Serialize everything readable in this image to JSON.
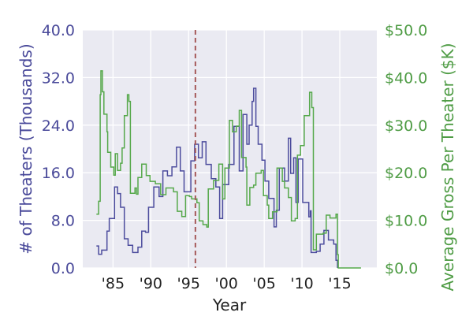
{
  "chart_data": {
    "type": "line",
    "title": "",
    "xlabel": "Year",
    "ylabel": "# of Theaters (Thousands)",
    "y2label": "Average Gross Per Theater ($K)",
    "xlim": [
      1981,
      2019.9
    ],
    "ylim": [
      0,
      40
    ],
    "y2lim": [
      0,
      50
    ],
    "grid": true,
    "x_ticks": [
      1985,
      1990,
      1995,
      2000,
      2005,
      2010,
      2015
    ],
    "x_tick_labels": [
      "'85",
      "'90",
      "'95",
      "'00",
      "'05",
      "'10",
      "'15"
    ],
    "y_ticks": [
      0,
      8,
      16,
      24,
      32,
      40
    ],
    "y_tick_labels": [
      "0.0",
      "8.0",
      "16.0",
      "24.0",
      "32.0",
      "40.0"
    ],
    "y2_ticks": [
      0,
      10,
      20,
      30,
      40,
      50
    ],
    "y2_tick_labels": [
      "$0.0",
      "$10.0",
      "$20.0",
      "$30.0",
      "$40.0",
      "$50.0"
    ],
    "vline": {
      "x": 1995.9,
      "style": "dashed",
      "color": "#a65a5a"
    },
    "series": [
      {
        "name": "Theaters (Thousands)",
        "axis": "left",
        "color": "#4c4c9d",
        "x": [
          1982.8,
          1983.1,
          1983.5,
          1984.2,
          1984.5,
          1985.2,
          1985.6,
          1986.0,
          1986.5,
          1987.0,
          1987.6,
          1988.3,
          1988.8,
          1989.3,
          1989.7,
          1990.4,
          1991.1,
          1991.6,
          1992.2,
          1992.8,
          1993.4,
          1993.9,
          1994.4,
          1995.3,
          1995.8,
          1996.3,
          1996.8,
          1997.3,
          1998.0,
          1998.6,
          1999.1,
          1999.5,
          2000.3,
          2001.0,
          2001.7,
          2002.2,
          2002.7,
          2003.0,
          2003.4,
          2003.6,
          2003.9,
          2004.2,
          2004.7,
          2005.1,
          2005.6,
          2006.3,
          2006.6,
          2007.0,
          2007.7,
          2008.2,
          2008.5,
          2008.9,
          2009.2,
          2009.5,
          2010.1,
          2010.9,
          2011.1,
          2011.2,
          2011.9,
          2012.4,
          2012.9,
          2013.5,
          2014.2,
          2014.5,
          2014.7
        ],
        "values": [
          3.7,
          2.3,
          3.0,
          6.2,
          8.3,
          13.6,
          12.5,
          10.2,
          4.9,
          3.8,
          2.6,
          3.5,
          6.2,
          6.0,
          10.2,
          13.6,
          12.0,
          16.3,
          15.5,
          17.0,
          20.3,
          16.3,
          12.8,
          18.0,
          20.8,
          18.5,
          21.2,
          17.4,
          15.0,
          13.6,
          8.3,
          14.0,
          17.4,
          23.8,
          16.3,
          25.8,
          20.8,
          24.0,
          28.0,
          30.2,
          23.8,
          20.8,
          18.1,
          14.6,
          11.7,
          6.9,
          9.7,
          16.8,
          14.6,
          21.8,
          15.9,
          18.5,
          11.0,
          18.3,
          11.0,
          8.6,
          9.6,
          2.6,
          2.8,
          4.0,
          6.3,
          4.7,
          4.0,
          1.3,
          0
        ]
      },
      {
        "name": "Average Gross Per Theater ($K)",
        "axis": "right",
        "color": "#55a84a",
        "x": [
          1982.8,
          1983.1,
          1983.3,
          1983.4,
          1983.6,
          1983.8,
          1984.2,
          1984.3,
          1984.7,
          1985.1,
          1985.3,
          1985.6,
          1986.0,
          1986.2,
          1986.5,
          1986.9,
          1987.1,
          1987.3,
          1987.9,
          1988.1,
          1988.3,
          1988.8,
          1989.4,
          1989.9,
          1990.6,
          1991.3,
          1992.0,
          1993.0,
          1993.5,
          1994.1,
          1994.6,
          1995.1,
          1995.4,
          1996.1,
          1996.4,
          1996.9,
          1997.4,
          1997.6,
          1998.3,
          1999.0,
          1999.5,
          1999.8,
          2000.4,
          2000.8,
          2001.3,
          2001.7,
          2002.0,
          2002.6,
          2002.7,
          2003.1,
          2003.6,
          2003.9,
          2004.6,
          2004.9,
          2005.4,
          2005.6,
          2006.1,
          2006.7,
          2007.4,
          2007.7,
          2008.2,
          2008.6,
          2009.1,
          2009.4,
          2009.8,
          2010.3,
          2011.0,
          2011.3,
          2011.5,
          2011.9,
          2012.8,
          2013.2,
          2013.7,
          2014.5,
          2014.7,
          2014.8,
          2017.8
        ],
        "values": [
          11.3,
          14.0,
          36.4,
          41.4,
          37.0,
          32.3,
          28.6,
          24.3,
          21.2,
          19.5,
          24.0,
          20.5,
          22.0,
          25.2,
          32.0,
          36.4,
          35.0,
          15.7,
          16.8,
          15.5,
          19.0,
          21.8,
          19.4,
          18.2,
          17.7,
          15.4,
          16.8,
          16.0,
          11.9,
          10.8,
          15.2,
          15.0,
          14.5,
          13.7,
          9.9,
          9.1,
          8.6,
          16.6,
          18.4,
          21.8,
          14.5,
          21.0,
          31.0,
          28.6,
          29.8,
          33.1,
          23.2,
          21.2,
          13.2,
          16.9,
          17.4,
          19.9,
          20.5,
          15.2,
          13.2,
          10.4,
          11.8,
          21.0,
          18.2,
          16.8,
          14.8,
          9.9,
          10.4,
          23.7,
          25.7,
          32.0,
          36.9,
          33.7,
          3.8,
          7.1,
          7.3,
          11.1,
          10.5,
          11.3,
          2.8,
          0,
          0
        ]
      }
    ]
  },
  "colors": {
    "left_axis": "#4a4a9a",
    "right_axis": "#4f9c45",
    "background": "#eaeaf2"
  }
}
